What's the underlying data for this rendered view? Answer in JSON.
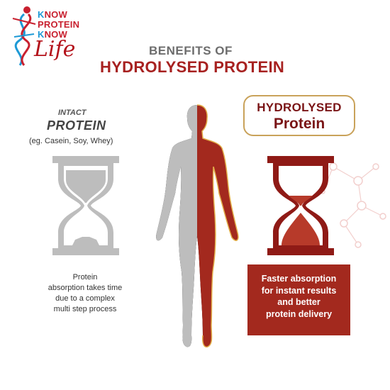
{
  "logo": {
    "line1_k": "K",
    "line1_rest": "NOW",
    "line2": "PROTEIN",
    "line3_k": "K",
    "line3_rest": "NOW",
    "script_word": "Life"
  },
  "heading": {
    "top": "BENEFITS OF",
    "main": "HYDROLYSED PROTEIN"
  },
  "intact": {
    "line1": "INTACT",
    "line2": "PROTEIN",
    "examples": "(eg. Casein, Soy, Whey)",
    "caption": [
      "Protein",
      "absorption takes time",
      "due to a complex",
      "multi step process"
    ]
  },
  "hydrolysed": {
    "badge_line1": "HYDROLYSED",
    "badge_line2": "Protein",
    "caption": [
      "Faster absorption",
      "for instant results",
      "and better",
      "protein delivery"
    ]
  },
  "colors": {
    "brand_red": "#a72120",
    "dark_red": "#7a1416",
    "gray": "#bdbdbd",
    "gold": "#c9a25a",
    "hourglass_frame_red": "#8f1a16"
  },
  "icons": [
    "dna-figure-icon",
    "human-body-icon",
    "hourglass-gray-icon",
    "hourglass-red-icon",
    "molecule-icon"
  ]
}
